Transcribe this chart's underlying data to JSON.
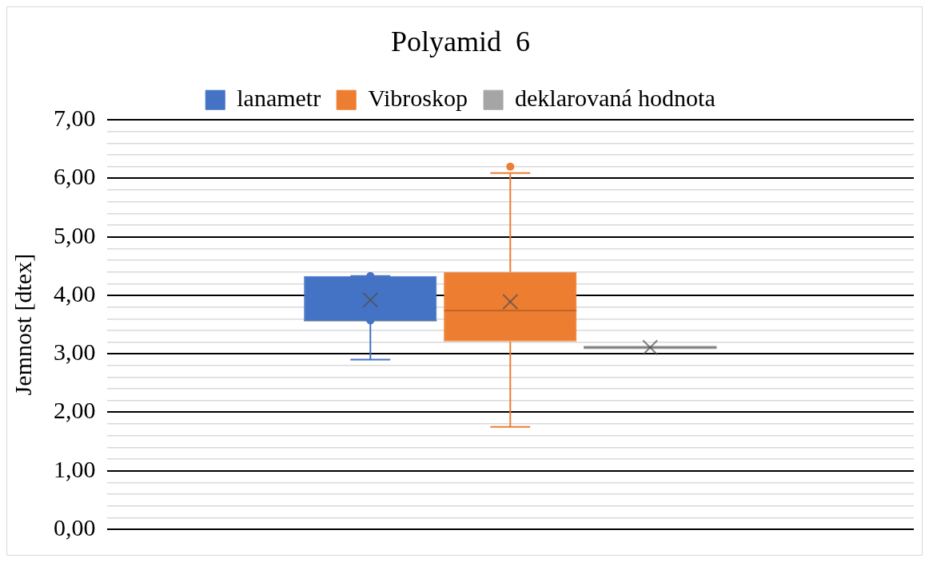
{
  "chart_data": {
    "type": "box",
    "title": "Polyamid  6",
    "ylabel": "Jemnost [dtex]",
    "categories": [
      null
    ],
    "series": [
      {
        "name": "lanametr",
        "color": "#4472c4",
        "boxes": [
          {
            "low": 2.9,
            "q1": 3.56,
            "median": 3.56,
            "q3": 4.33,
            "high": 4.33,
            "mean": 3.92,
            "outliers": [
              4.33,
              3.57
            ]
          }
        ]
      },
      {
        "name": "Vibroskop",
        "color": "#ed7d31",
        "boxes": [
          {
            "low": 1.75,
            "q1": 3.21,
            "median": 3.74,
            "q3": 4.4,
            "high": 6.09,
            "mean": 3.89,
            "outliers": [
              6.2
            ]
          }
        ]
      },
      {
        "name": "deklarovaná hodnota",
        "color": "#a5a5a5",
        "boxes": [
          {
            "low": 3.11,
            "q1": 3.11,
            "median": 3.11,
            "q3": 3.11,
            "high": 3.11,
            "mean": 3.11
          }
        ]
      }
    ],
    "ylim": [
      0,
      7
    ],
    "yticks": [
      {
        "value": 0,
        "label": "0,00"
      },
      {
        "value": 0.2,
        "label": null
      },
      {
        "value": 0.4,
        "label": null
      },
      {
        "value": 0.6,
        "label": null
      },
      {
        "value": 0.8,
        "label": null
      },
      {
        "value": 1,
        "label": "1,00"
      },
      {
        "value": 1.2,
        "label": null
      },
      {
        "value": 1.4,
        "label": null
      },
      {
        "value": 1.6,
        "label": null
      },
      {
        "value": 1.8,
        "label": null
      },
      {
        "value": 2,
        "label": "2,00"
      },
      {
        "value": 2.2,
        "label": null
      },
      {
        "value": 2.4,
        "label": null
      },
      {
        "value": 2.6,
        "label": null
      },
      {
        "value": 2.8,
        "label": null
      },
      {
        "value": 3,
        "label": "3,00"
      },
      {
        "value": 3.2,
        "label": null
      },
      {
        "value": 3.4,
        "label": null
      },
      {
        "value": 3.6,
        "label": null
      },
      {
        "value": 3.8,
        "label": null
      },
      {
        "value": 4,
        "label": "4,00"
      },
      {
        "value": 4.2,
        "label": null
      },
      {
        "value": 4.4,
        "label": null
      },
      {
        "value": 4.6,
        "label": null
      },
      {
        "value": 4.8,
        "label": null
      },
      {
        "value": 5,
        "label": "5,00"
      },
      {
        "value": 5.2,
        "label": null
      },
      {
        "value": 5.4,
        "label": null
      },
      {
        "value": 5.6,
        "label": null
      },
      {
        "value": 5.8,
        "label": null
      },
      {
        "value": 6,
        "label": "6,00"
      },
      {
        "value": 6.2,
        "label": null
      },
      {
        "value": 6.4,
        "label": null
      },
      {
        "value": 6.6,
        "label": null
      },
      {
        "value": 6.8,
        "label": null
      },
      {
        "value": 7,
        "label": "7,00"
      }
    ],
    "grid": "y",
    "legend": "top",
    "tick_labels": "y"
  }
}
